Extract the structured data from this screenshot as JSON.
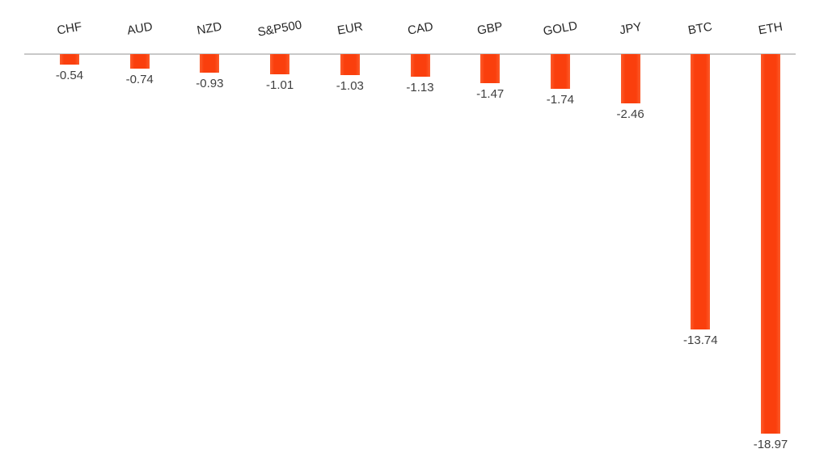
{
  "chart_data": {
    "type": "bar",
    "title": "",
    "xlabel": "",
    "ylabel": "",
    "categories": [
      "CHF",
      "AUD",
      "NZD",
      "S&P500",
      "EUR",
      "CAD",
      "GBP",
      "GOLD",
      "JPY",
      "BTC",
      "ETH"
    ],
    "values": [
      -0.54,
      -0.74,
      -0.93,
      -1.01,
      -1.03,
      -1.13,
      -1.47,
      -1.74,
      -2.46,
      -13.74,
      -18.97
    ],
    "data_labels": [
      "-0.54",
      "-0.74",
      "-0.93",
      "-1.01",
      "-1.03",
      "-1.13",
      "-1.47",
      "-1.74",
      "-2.46",
      "-13.74",
      "-18.97"
    ],
    "ylim": [
      -20,
      0
    ],
    "grid": "off",
    "legend": "none",
    "category_label_position": "above-axis",
    "category_label_rotation_deg": -10,
    "bar_color": "#fa3f0d",
    "axis_line_color": "#c8c8c8",
    "category_label_color": "#272727",
    "value_label_color": "#3f3f3f",
    "background_color": "#ffffff"
  }
}
